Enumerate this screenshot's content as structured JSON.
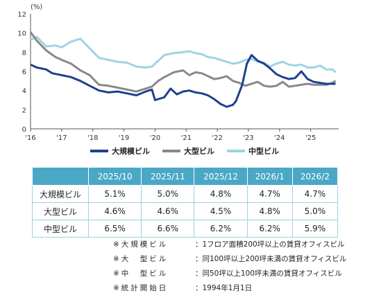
{
  "chart_data": {
    "type": "line",
    "unit": "(%)",
    "ylim": [
      0,
      12
    ],
    "yticks": [
      0,
      2,
      4,
      6,
      8,
      10,
      12
    ],
    "xlim": [
      2016,
      2025.9
    ],
    "xticks": [
      {
        "x": 2016,
        "label": "'16"
      },
      {
        "x": 2017,
        "label": "'17"
      },
      {
        "x": 2018,
        "label": "'18"
      },
      {
        "x": 2019,
        "label": "'19"
      },
      {
        "x": 2020,
        "label": "'20"
      },
      {
        "x": 2021,
        "label": "'21"
      },
      {
        "x": 2022,
        "label": "'22"
      },
      {
        "x": 2023,
        "label": "'23"
      },
      {
        "x": 2024,
        "label": "'24"
      },
      {
        "x": 2025,
        "label": "'25"
      }
    ],
    "series": [
      {
        "name": "大規模ビル",
        "color": "#1f3f8f",
        "x": [
          2016.0,
          2016.2,
          2016.5,
          2016.7,
          2017.0,
          2017.3,
          2017.6,
          2017.9,
          2018.2,
          2018.5,
          2018.8,
          2019.1,
          2019.4,
          2019.7,
          2019.9,
          2020.0,
          2020.3,
          2020.5,
          2020.7,
          2020.9,
          2021.1,
          2021.3,
          2021.5,
          2021.7,
          2021.9,
          2022.1,
          2022.3,
          2022.5,
          2022.6,
          2022.8,
          2022.95,
          2023.1,
          2023.3,
          2023.5,
          2023.7,
          2023.9,
          2024.1,
          2024.3,
          2024.5,
          2024.7,
          2024.9,
          2025.1,
          2025.3,
          2025.5,
          2025.7,
          2025.8
        ],
        "y": [
          6.7,
          6.4,
          6.2,
          5.8,
          5.6,
          5.4,
          5.0,
          4.5,
          4.0,
          3.8,
          3.9,
          3.7,
          3.5,
          3.9,
          4.1,
          3.0,
          3.3,
          4.2,
          3.6,
          3.9,
          4.0,
          3.8,
          3.7,
          3.5,
          3.1,
          2.6,
          2.3,
          2.5,
          2.9,
          4.6,
          6.8,
          7.7,
          7.1,
          6.8,
          6.3,
          5.7,
          5.4,
          5.2,
          5.3,
          6.0,
          5.2,
          4.9,
          4.8,
          4.7,
          4.7,
          4.7
        ]
      },
      {
        "name": "大型ビル",
        "color": "#888888",
        "x": [
          2016.0,
          2016.2,
          2016.5,
          2016.8,
          2017.0,
          2017.3,
          2017.6,
          2017.9,
          2018.2,
          2018.5,
          2018.8,
          2019.1,
          2019.4,
          2019.7,
          2019.9,
          2020.1,
          2020.3,
          2020.6,
          2020.9,
          2021.1,
          2021.3,
          2021.5,
          2021.7,
          2021.9,
          2022.1,
          2022.3,
          2022.5,
          2022.7,
          2022.9,
          2023.1,
          2023.3,
          2023.5,
          2023.7,
          2023.9,
          2024.1,
          2024.3,
          2024.5,
          2024.7,
          2024.9,
          2025.1,
          2025.3,
          2025.5,
          2025.7,
          2025.8
        ],
        "y": [
          10.1,
          9.2,
          8.2,
          7.5,
          7.2,
          6.8,
          6.1,
          5.6,
          4.6,
          4.5,
          4.3,
          4.1,
          3.9,
          4.2,
          4.4,
          5.0,
          5.4,
          5.9,
          6.1,
          5.6,
          5.9,
          5.8,
          5.5,
          5.2,
          5.3,
          5.5,
          5.0,
          4.8,
          4.5,
          4.7,
          4.9,
          4.5,
          4.4,
          4.5,
          4.9,
          4.4,
          4.5,
          4.6,
          4.7,
          4.6,
          4.6,
          4.6,
          4.8,
          5.0
        ]
      },
      {
        "name": "中型ビル",
        "color": "#9dd3e3",
        "x": [
          2016.0,
          2016.2,
          2016.5,
          2016.8,
          2017.0,
          2017.3,
          2017.6,
          2017.9,
          2018.2,
          2018.5,
          2018.8,
          2019.1,
          2019.4,
          2019.7,
          2019.9,
          2020.1,
          2020.3,
          2020.6,
          2020.9,
          2021.1,
          2021.3,
          2021.5,
          2021.7,
          2021.9,
          2022.1,
          2022.3,
          2022.5,
          2022.7,
          2022.9,
          2023.1,
          2023.3,
          2023.5,
          2023.7,
          2023.9,
          2024.1,
          2024.3,
          2024.5,
          2024.7,
          2024.9,
          2025.1,
          2025.3,
          2025.5,
          2025.7,
          2025.8
        ],
        "y": [
          9.3,
          9.6,
          8.6,
          8.7,
          8.5,
          9.1,
          9.4,
          8.4,
          7.4,
          7.2,
          7.0,
          6.9,
          6.5,
          6.4,
          6.5,
          7.1,
          7.7,
          7.9,
          8.0,
          8.1,
          7.9,
          7.8,
          7.5,
          7.4,
          7.2,
          7.0,
          6.8,
          6.9,
          7.2,
          7.3,
          7.0,
          6.9,
          6.5,
          6.8,
          7.0,
          6.7,
          6.6,
          6.7,
          6.4,
          6.4,
          6.6,
          6.2,
          6.2,
          5.9
        ]
      }
    ]
  },
  "legend": [
    {
      "label": "大規模ビル",
      "color": "#1f3f8f"
    },
    {
      "label": "大型ビル",
      "color": "#888888"
    },
    {
      "label": "中型ビル",
      "color": "#9dd3e3"
    }
  ],
  "table": {
    "header_color": "#4aa8c6",
    "columns": [
      "",
      "2025/10",
      "2025/11",
      "2025/12",
      "2026/1",
      "2026/2"
    ],
    "rows": [
      {
        "label": "大規模ビル",
        "values": [
          "5.1%",
          "5.0%",
          "4.8%",
          "4.7%",
          "4.7%"
        ]
      },
      {
        "label": "大型ビル",
        "values": [
          "4.6%",
          "4.6%",
          "4.5%",
          "4.8%",
          "5.0%"
        ]
      },
      {
        "label": "中型ビル",
        "values": [
          "6.5%",
          "6.6%",
          "6.2%",
          "6.2%",
          "5.9%"
        ]
      }
    ]
  },
  "notes": [
    {
      "key": "※大規模ビル",
      "text": "：1フロア面積200坪以上の賃貸オフィスビル"
    },
    {
      "key": "※大　型ビル",
      "text": "：同100坪以上200坪未満の賃貸オフィスビル"
    },
    {
      "key": "※中　型ビル",
      "text": "：同50坪以上100坪未満の賃貸オフィスビル"
    },
    {
      "key": "※統計開始日",
      "text": "：1994年1月1日"
    }
  ]
}
